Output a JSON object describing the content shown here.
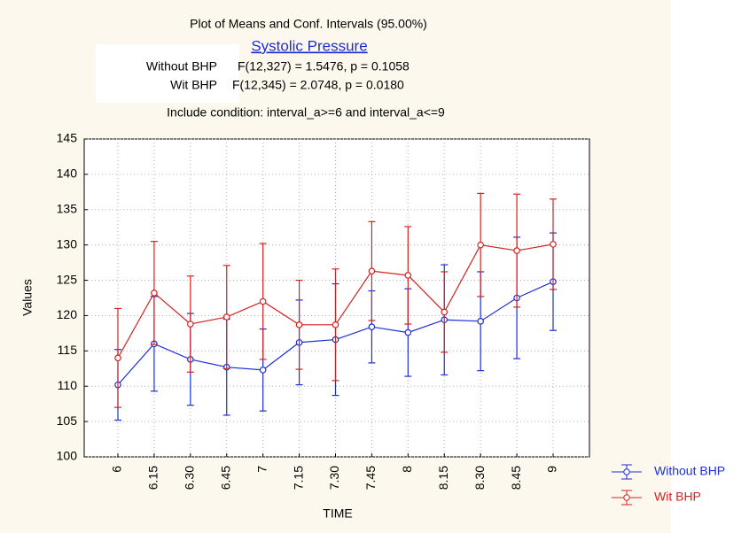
{
  "chart_data": {
    "type": "line",
    "title": "Plot of Means and Conf. Intervals (95.00%)",
    "subtitle": "Systolic Pressure",
    "stats": [
      {
        "group": "Without BHP",
        "test": "F(12,327) = 1.5476, p = 0.1058"
      },
      {
        "group": "Wit BHP",
        "test": "F(12,345) = 2.0748, p = 0.0180"
      }
    ],
    "note": "Include condition: interval_a>=6 and interval_a<=9",
    "x_label": "TIME",
    "y_label": "Values",
    "categories": [
      "6",
      "6.15",
      "6.30",
      "6.45",
      "7",
      "7.15",
      "7.30",
      "7.45",
      "8",
      "8.15",
      "8.30",
      "8.45",
      "9"
    ],
    "series": [
      {
        "name": "Without BHP",
        "color": "#1c2fd6",
        "values": [
          110.2,
          116,
          113.8,
          112.7,
          112.3,
          116.2,
          116.6,
          118.4,
          117.6,
          119.4,
          119.2,
          122.5,
          124.8
        ],
        "errors": [
          5,
          6.7,
          6.5,
          6.8,
          5.8,
          6,
          7.9,
          5.1,
          6.2,
          7.8,
          7,
          8.6,
          6.9
        ]
      },
      {
        "name": "Wit BHP",
        "color": "#d42222",
        "values": [
          114,
          123.2,
          118.8,
          119.8,
          122,
          118.7,
          118.7,
          126.3,
          125.7,
          120.5,
          130,
          129.2,
          130.1
        ],
        "errors": [
          7,
          7.3,
          6.8,
          7.3,
          8.2,
          6.3,
          7.9,
          7,
          6.9,
          5.7,
          7.3,
          8,
          6.4
        ]
      }
    ],
    "ylim": [
      100,
      145
    ],
    "yticks": [
      100,
      105,
      110,
      115,
      120,
      125,
      130,
      135,
      140,
      145
    ],
    "grid": true,
    "legend": "bottom-right"
  }
}
